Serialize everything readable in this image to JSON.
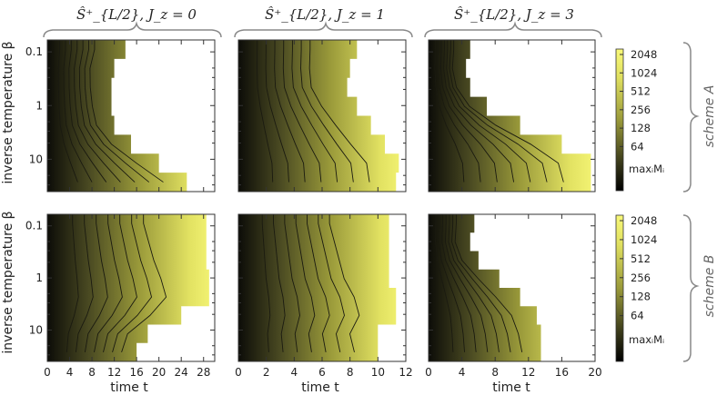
{
  "chart_data": {
    "type": "heatmap",
    "column_titles": [
      "Ŝ⁺_{L/2}, J_z = 0",
      "Ŝ⁺_{L/2}, J_z = 1",
      "Ŝ⁺_{L/2}, J_z = 3"
    ],
    "row_labels": [
      "scheme A",
      "scheme B"
    ],
    "xlabel": "time t",
    "ylabel": "inverse temperature β",
    "y_scale": "log",
    "y_ticks": [
      "0.1",
      "1",
      "10"
    ],
    "x_ticks": [
      [
        "0",
        "4",
        "8",
        "12",
        "16",
        "20",
        "24",
        "28"
      ],
      [
        "0",
        "2",
        "4",
        "6",
        "8",
        "10",
        "12"
      ],
      [
        "0",
        "4",
        "8",
        "12",
        "16",
        "20"
      ]
    ],
    "xlim": [
      [
        0,
        30
      ],
      [
        0,
        12
      ],
      [
        0,
        20
      ]
    ],
    "ylim": [
      0.06,
      40
    ],
    "colorbar": {
      "ticks": [
        "2048",
        "1024",
        "512",
        "256",
        "128",
        "64"
      ],
      "min_label": "maxᵢMᵢ",
      "colors": [
        "#f5f575",
        "#1a1a10"
      ]
    },
    "panels": [
      {
        "scheme": "A",
        "Jz": 0,
        "tmax": [
          14,
          12,
          11.5,
          11.5,
          12,
          15,
          20,
          25
        ]
      },
      {
        "scheme": "A",
        "Jz": 1,
        "tmax": [
          8.5,
          8,
          7.8,
          8.5,
          9.5,
          10.5,
          11.5,
          11.3
        ]
      },
      {
        "scheme": "A",
        "Jz": 3,
        "tmax": [
          5,
          4.5,
          5,
          7,
          11,
          16,
          19.5,
          19.5
        ]
      },
      {
        "scheme": "B",
        "Jz": 0,
        "tmax": [
          28.5,
          28.5,
          28.5,
          29,
          29,
          24,
          18,
          16
        ]
      },
      {
        "scheme": "B",
        "Jz": 1,
        "tmax": [
          10.8,
          10.8,
          10.8,
          10.8,
          11.3,
          11.3,
          10,
          10
        ]
      },
      {
        "scheme": "B",
        "Jz": 3,
        "tmax": [
          5.5,
          5,
          6,
          8.5,
          11,
          13,
          13.5,
          13.5
        ]
      }
    ]
  }
}
